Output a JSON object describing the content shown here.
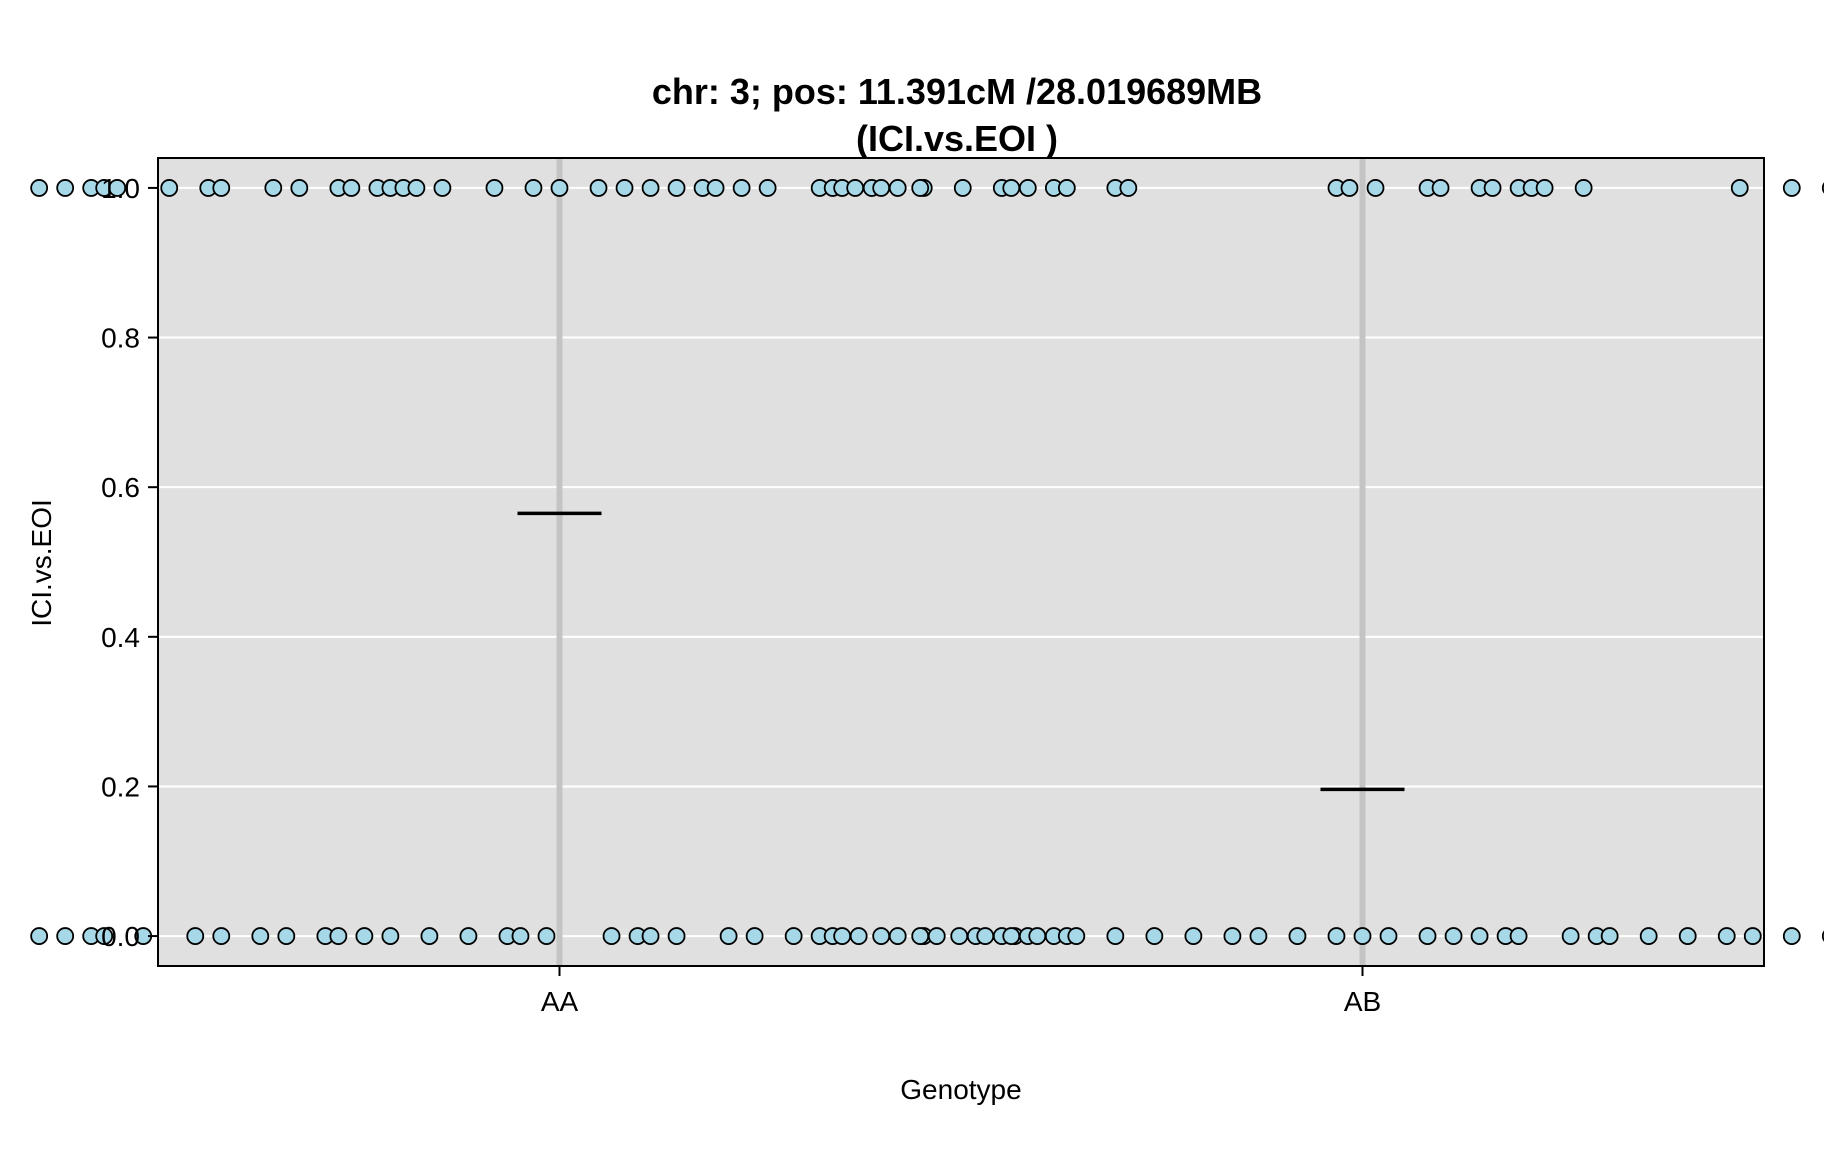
{
  "chart_data": {
    "type": "scatter",
    "title_line1": "chr: 3; pos: 11.391cM /28.019689MB",
    "title_line2": "(ICI.vs.EOI )",
    "xlabel": "Genotype",
    "ylabel": "ICI.vs.EOI",
    "categories": [
      "AA",
      "AB"
    ],
    "ylim": [
      -0.04,
      1.04
    ],
    "yticks": [
      0.0,
      0.2,
      0.4,
      0.6,
      0.8,
      1.0
    ],
    "ytick_labels": [
      "0.0",
      "0.2",
      "0.4",
      "0.6",
      "0.8",
      "1.0"
    ],
    "grid": true,
    "background": "#e0e0e0",
    "point_fill": "#a6d8e8",
    "point_stroke": "#000000",
    "means": [
      0.565,
      0.196
    ],
    "points": [
      {
        "category": "AA",
        "y1_offsets": [
          -0.4,
          -0.38,
          -0.36,
          -0.35,
          -0.34,
          -0.3,
          -0.27,
          -0.26,
          -0.22,
          -0.2,
          -0.17,
          -0.16,
          -0.14,
          -0.13,
          -0.12,
          -0.11,
          -0.09,
          -0.05,
          -0.02,
          0.0,
          0.03,
          0.05,
          0.07,
          0.09,
          0.11,
          0.12,
          0.14,
          0.16,
          0.2,
          0.21,
          0.24,
          0.26,
          0.28,
          0.31,
          0.34,
          0.36,
          0.38,
          0.39
        ],
        "y0_offsets": [
          -0.4,
          -0.38,
          -0.36,
          -0.35,
          -0.32,
          -0.28,
          -0.26,
          -0.23,
          -0.21,
          -0.18,
          -0.17,
          -0.15,
          -0.13,
          -0.1,
          -0.07,
          -0.04,
          -0.03,
          -0.01,
          0.04,
          0.06,
          0.07,
          0.09,
          0.13,
          0.15,
          0.18,
          0.2,
          0.21,
          0.23,
          0.26,
          0.28,
          0.29,
          0.32,
          0.34,
          0.35,
          0.36,
          0.38,
          0.39
        ]
      },
      {
        "category": "AB",
        "y1_offsets": [
          -0.4,
          -0.39,
          -0.37,
          -0.34,
          -0.27,
          -0.19,
          -0.18,
          -0.02,
          -0.01,
          0.01,
          0.05,
          0.06,
          0.09,
          0.1,
          0.12,
          0.13,
          0.14,
          0.17,
          0.29,
          0.33,
          0.36,
          0.38,
          0.39
        ],
        "y0_offsets": [
          -0.4,
          -0.37,
          -0.34,
          -0.31,
          -0.29,
          -0.27,
          -0.25,
          -0.22,
          -0.19,
          -0.16,
          -0.13,
          -0.1,
          -0.08,
          -0.05,
          -0.02,
          0.0,
          0.02,
          0.05,
          0.07,
          0.09,
          0.11,
          0.12,
          0.16,
          0.18,
          0.19,
          0.22,
          0.25,
          0.28,
          0.3,
          0.33,
          0.36,
          0.38,
          0.4
        ]
      }
    ]
  }
}
